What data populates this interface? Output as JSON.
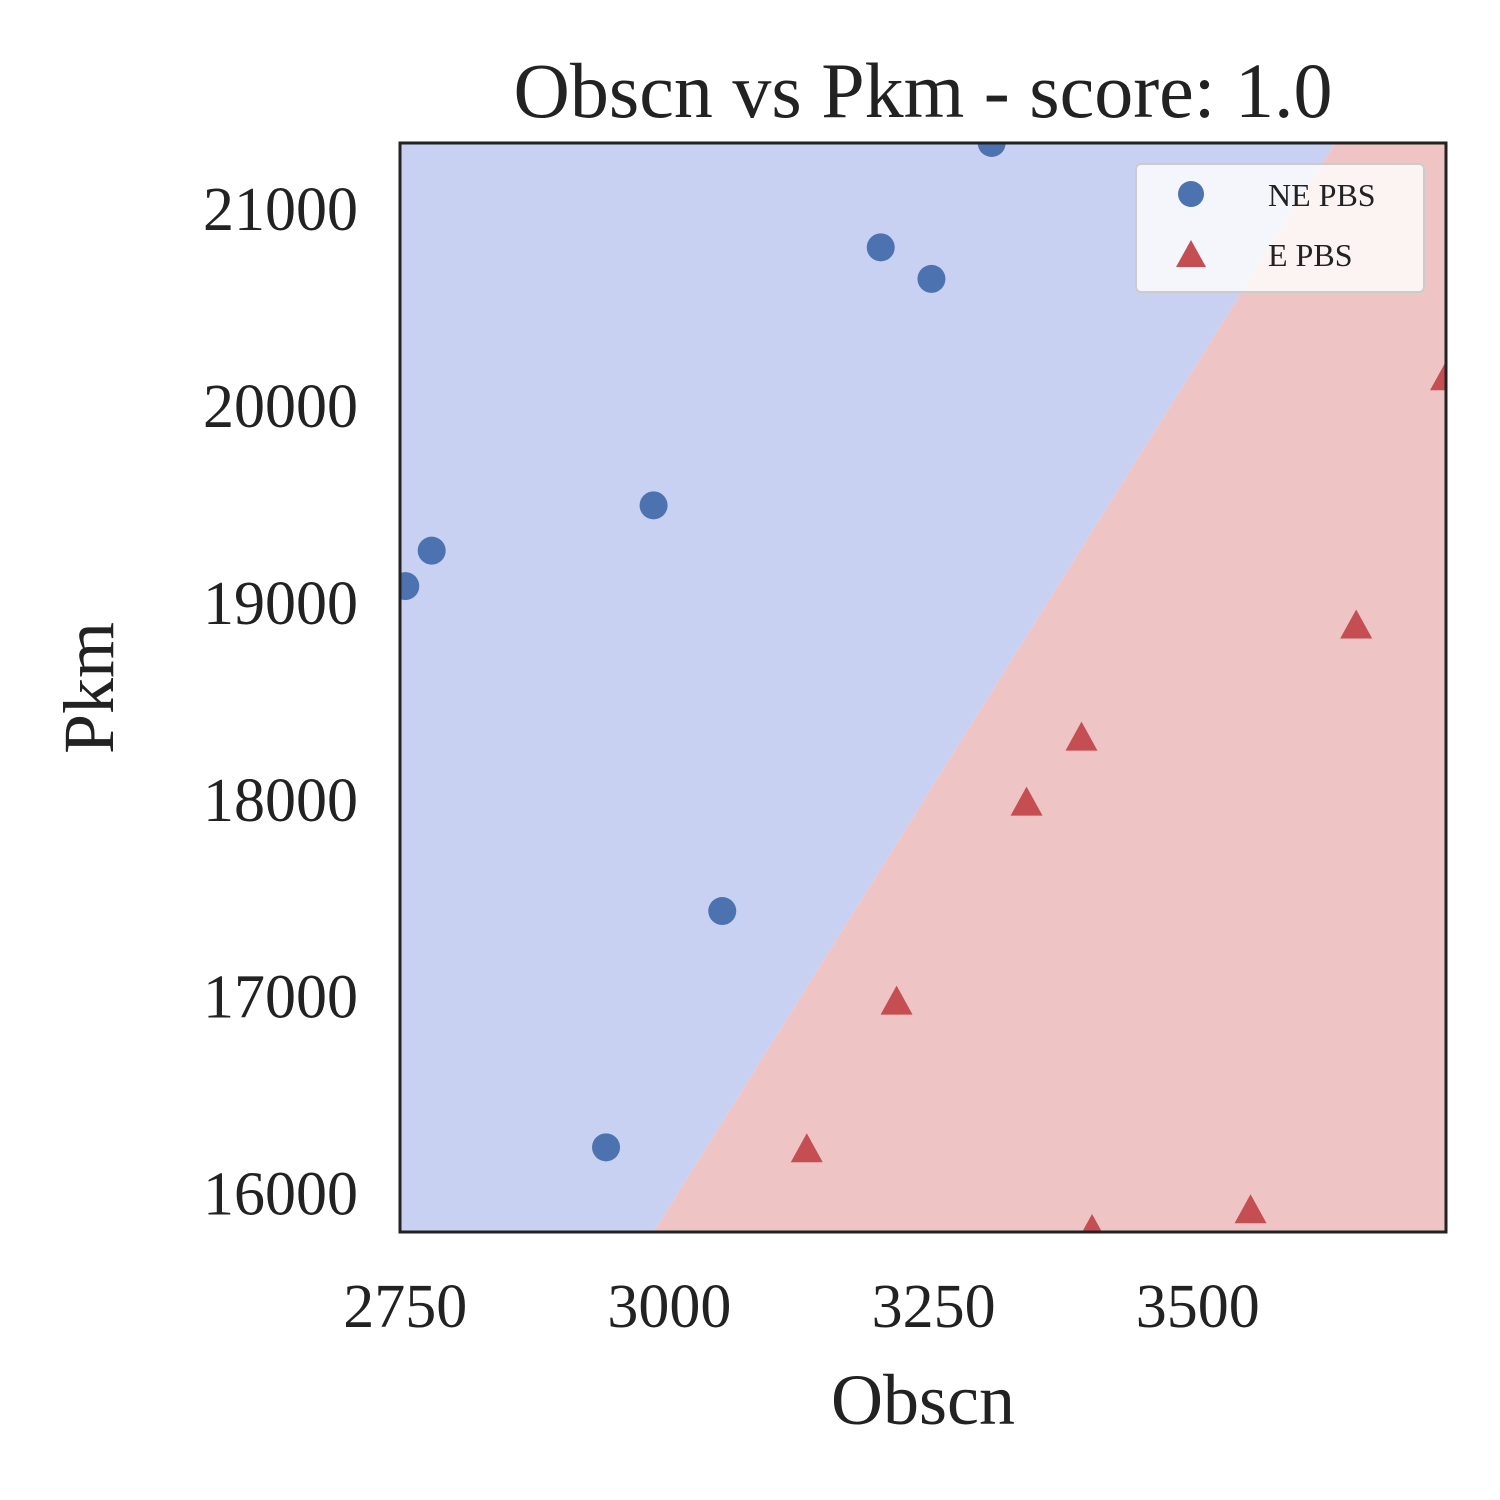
{
  "chart_data": {
    "type": "scatter",
    "title": "Obscn vs Pkm - score: 1.0",
    "xlabel": "Obscn",
    "ylabel": "Pkm",
    "xlim": [
      2745,
      3735
    ],
    "ylim": [
      15800,
      21330
    ],
    "xticks": [
      2750,
      3000,
      3250,
      3500
    ],
    "yticks": [
      16000,
      17000,
      18000,
      19000,
      20000,
      21000
    ],
    "grid": false,
    "legend_position": "top-right",
    "decision_boundary": {
      "x": [
        2985,
        3630
      ],
      "y": [
        15800,
        21330
      ],
      "left_region": "NE PBS",
      "right_region": "E PBS"
    },
    "series": [
      {
        "name": "NE PBS",
        "marker": "circle",
        "color": "#4c72b0",
        "region_color": "#c8d1f1",
        "points": [
          [
            3305,
            21330
          ],
          [
            3200,
            20800
          ],
          [
            3248,
            20640
          ],
          [
            2985,
            19490
          ],
          [
            2775,
            19260
          ],
          [
            2750,
            19080
          ],
          [
            3050,
            17430
          ],
          [
            2940,
            16230
          ]
        ]
      },
      {
        "name": "E PBS",
        "marker": "triangle",
        "color": "#c44e52",
        "region_color": "#efc4c4",
        "points": [
          [
            3735,
            20130
          ],
          [
            3650,
            18870
          ],
          [
            3390,
            18300
          ],
          [
            3338,
            17970
          ],
          [
            3215,
            16960
          ],
          [
            3130,
            16210
          ],
          [
            3550,
            15900
          ],
          [
            3400,
            15800
          ]
        ]
      }
    ]
  }
}
